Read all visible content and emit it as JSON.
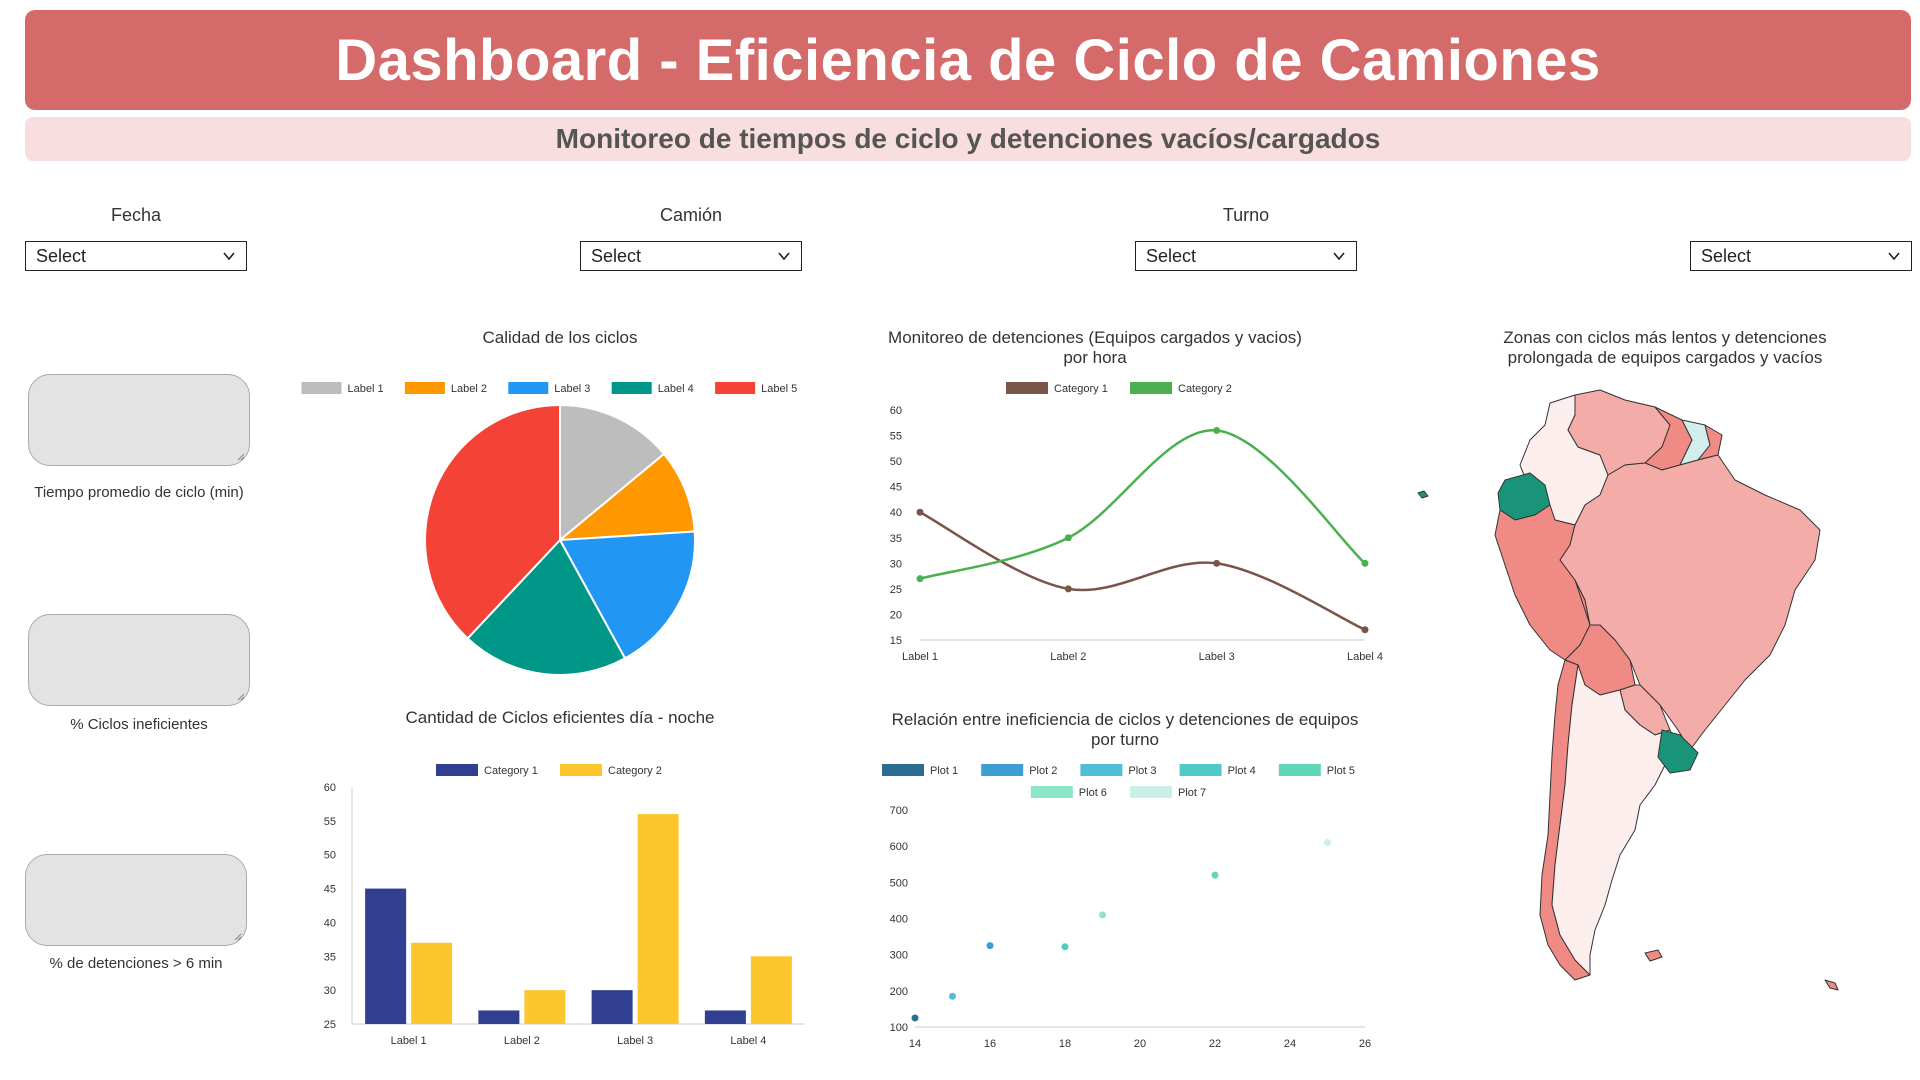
{
  "header": {
    "title": "Dashboard - Eficiencia de Ciclo de Camiones",
    "subtitle": "Monitoreo de tiempos de ciclo y detenciones vacíos/cargados"
  },
  "filters": [
    {
      "label": "Fecha",
      "value": "Select"
    },
    {
      "label": "Camión",
      "value": "Select"
    },
    {
      "label": "Turno",
      "value": "Select"
    },
    {
      "label": "",
      "value": "Select"
    }
  ],
  "kpis": [
    {
      "label": "Tiempo promedio de ciclo (min)",
      "value": ""
    },
    {
      "label": "% Ciclos ineficientes",
      "value": ""
    },
    {
      "label": "% de detenciones > 6 min",
      "value": ""
    }
  ],
  "colors": {
    "header_bg": "#d56a6a",
    "subheader_bg": "#f8dede",
    "map_high": "#f08a85",
    "map_mid": "#f4aca8",
    "map_low": "#fdeeee",
    "map_teal": "#1a9478",
    "map_lightteal": "#d2eeec"
  },
  "map": {
    "title": "Zonas con ciclos más lentos y detenciones prolongada de equipos cargados y vacíos",
    "region": "South America"
  },
  "chart_data": [
    {
      "id": "pie",
      "type": "pie",
      "title": "Calidad de los ciclos",
      "labels": [
        "Label 1",
        "Label 2",
        "Label 3",
        "Label 4",
        "Label 5"
      ],
      "values": [
        14,
        10,
        18,
        20,
        38
      ],
      "colors": [
        "#bdbdbd",
        "#ff9800",
        "#2196f3",
        "#009688",
        "#f44336"
      ],
      "legend": "top"
    },
    {
      "id": "line",
      "type": "line",
      "title": "Monitoreo de detenciones (Equipos cargados y vacios) por hora",
      "categories": [
        "Label 1",
        "Label 2",
        "Label 3",
        "Label 4"
      ],
      "series": [
        {
          "name": "Category 1",
          "values": [
            40,
            25,
            30,
            17
          ],
          "color": "#795548"
        },
        {
          "name": "Category 2",
          "values": [
            27,
            35,
            56,
            30
          ],
          "color": "#4caf50"
        }
      ],
      "ylim": [
        15,
        60
      ],
      "yticks": [
        15,
        20,
        25,
        30,
        35,
        40,
        45,
        50,
        55,
        60
      ],
      "legend": "top"
    },
    {
      "id": "bar",
      "type": "bar",
      "title": "Cantidad de Ciclos eficientes día - noche",
      "categories": [
        "Label 1",
        "Label 2",
        "Label 3",
        "Label 4"
      ],
      "series": [
        {
          "name": "Category 1",
          "values": [
            45,
            27,
            30,
            27
          ],
          "color": "#303f8f"
        },
        {
          "name": "Category 2",
          "values": [
            37,
            30,
            56,
            35
          ],
          "color": "#fcc62c"
        }
      ],
      "ylim": [
        25,
        60
      ],
      "yticks": [
        25,
        30,
        35,
        40,
        45,
        50,
        55,
        60
      ],
      "legend": "top"
    },
    {
      "id": "scatter",
      "type": "scatter",
      "title": "Relación entre ineficiencia de ciclos y detenciones de equipos por turno",
      "series": [
        {
          "name": "Plot 1",
          "color": "#2a6d91",
          "points": [
            [
              14,
              125
            ]
          ]
        },
        {
          "name": "Plot 2",
          "color": "#3d9ed2",
          "points": [
            [
              16,
              325
            ]
          ]
        },
        {
          "name": "Plot 3",
          "color": "#4fbfd8",
          "points": [
            [
              15,
              185
            ]
          ]
        },
        {
          "name": "Plot 4",
          "color": "#4fcac6",
          "points": [
            [
              18,
              322
            ]
          ]
        },
        {
          "name": "Plot 5",
          "color": "#5fd6b5",
          "points": [
            [
              22,
              520
            ]
          ]
        },
        {
          "name": "Plot 6",
          "color": "#8ee6c8",
          "points": [
            [
              19,
              410
            ]
          ]
        },
        {
          "name": "Plot 7",
          "color": "#c9efe6",
          "points": [
            [
              25,
              610
            ]
          ]
        }
      ],
      "xlim": [
        14,
        26
      ],
      "xticks": [
        14,
        16,
        18,
        20,
        22,
        24,
        26
      ],
      "ylim": [
        100,
        700
      ],
      "yticks": [
        100,
        200,
        300,
        400,
        500,
        600,
        700
      ],
      "legend": "top"
    }
  ]
}
